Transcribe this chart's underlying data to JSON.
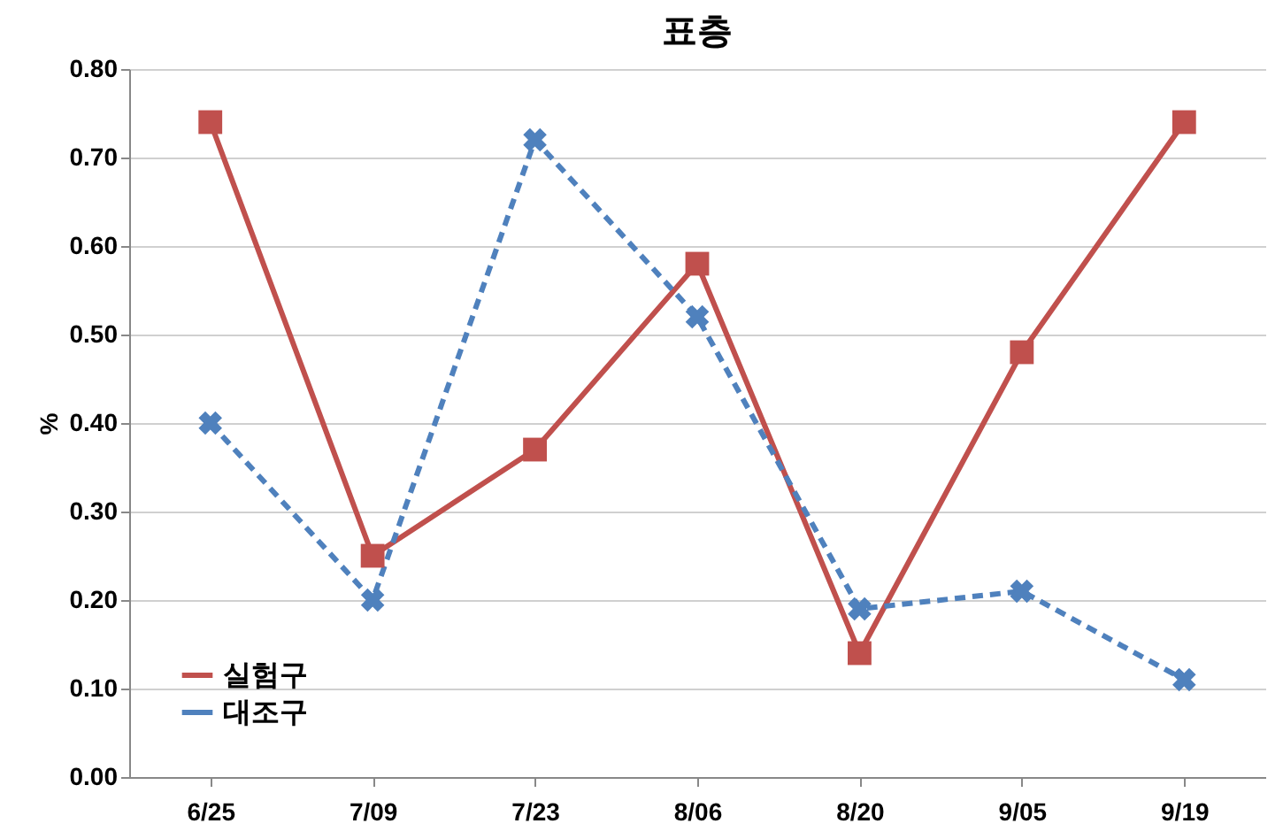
{
  "chart_data": {
    "type": "line",
    "title": "표층",
    "ylabel": "%",
    "categories": [
      "6/25",
      "7/09",
      "7/23",
      "8/06",
      "8/20",
      "9/05",
      "9/19"
    ],
    "series": [
      {
        "name": "실험구",
        "color": "#c0504d",
        "values": [
          0.74,
          0.25,
          0.37,
          0.58,
          0.14,
          0.48,
          0.74
        ],
        "marker": "square",
        "line_style": "solid"
      },
      {
        "name": "대조구",
        "color": "#4f81bd",
        "values": [
          0.4,
          0.2,
          0.72,
          0.52,
          0.19,
          0.21,
          0.11
        ],
        "marker": "x",
        "line_style": "dashed"
      }
    ],
    "ylim": [
      0,
      0.8
    ],
    "yticks": [
      {
        "value": 0,
        "label": "0.00"
      },
      {
        "value": 0.1,
        "label": "0.10"
      },
      {
        "value": 0.2,
        "label": "0.20"
      },
      {
        "value": 0.3,
        "label": "0.30"
      },
      {
        "value": 0.4,
        "label": "0.40"
      },
      {
        "value": 0.5,
        "label": "0.50"
      },
      {
        "value": 0.6,
        "label": "0.60"
      },
      {
        "value": 0.7,
        "label": "0.70"
      },
      {
        "value": 0.8,
        "label": "0.80"
      }
    ],
    "grid": "y",
    "legend": "bottom left"
  }
}
